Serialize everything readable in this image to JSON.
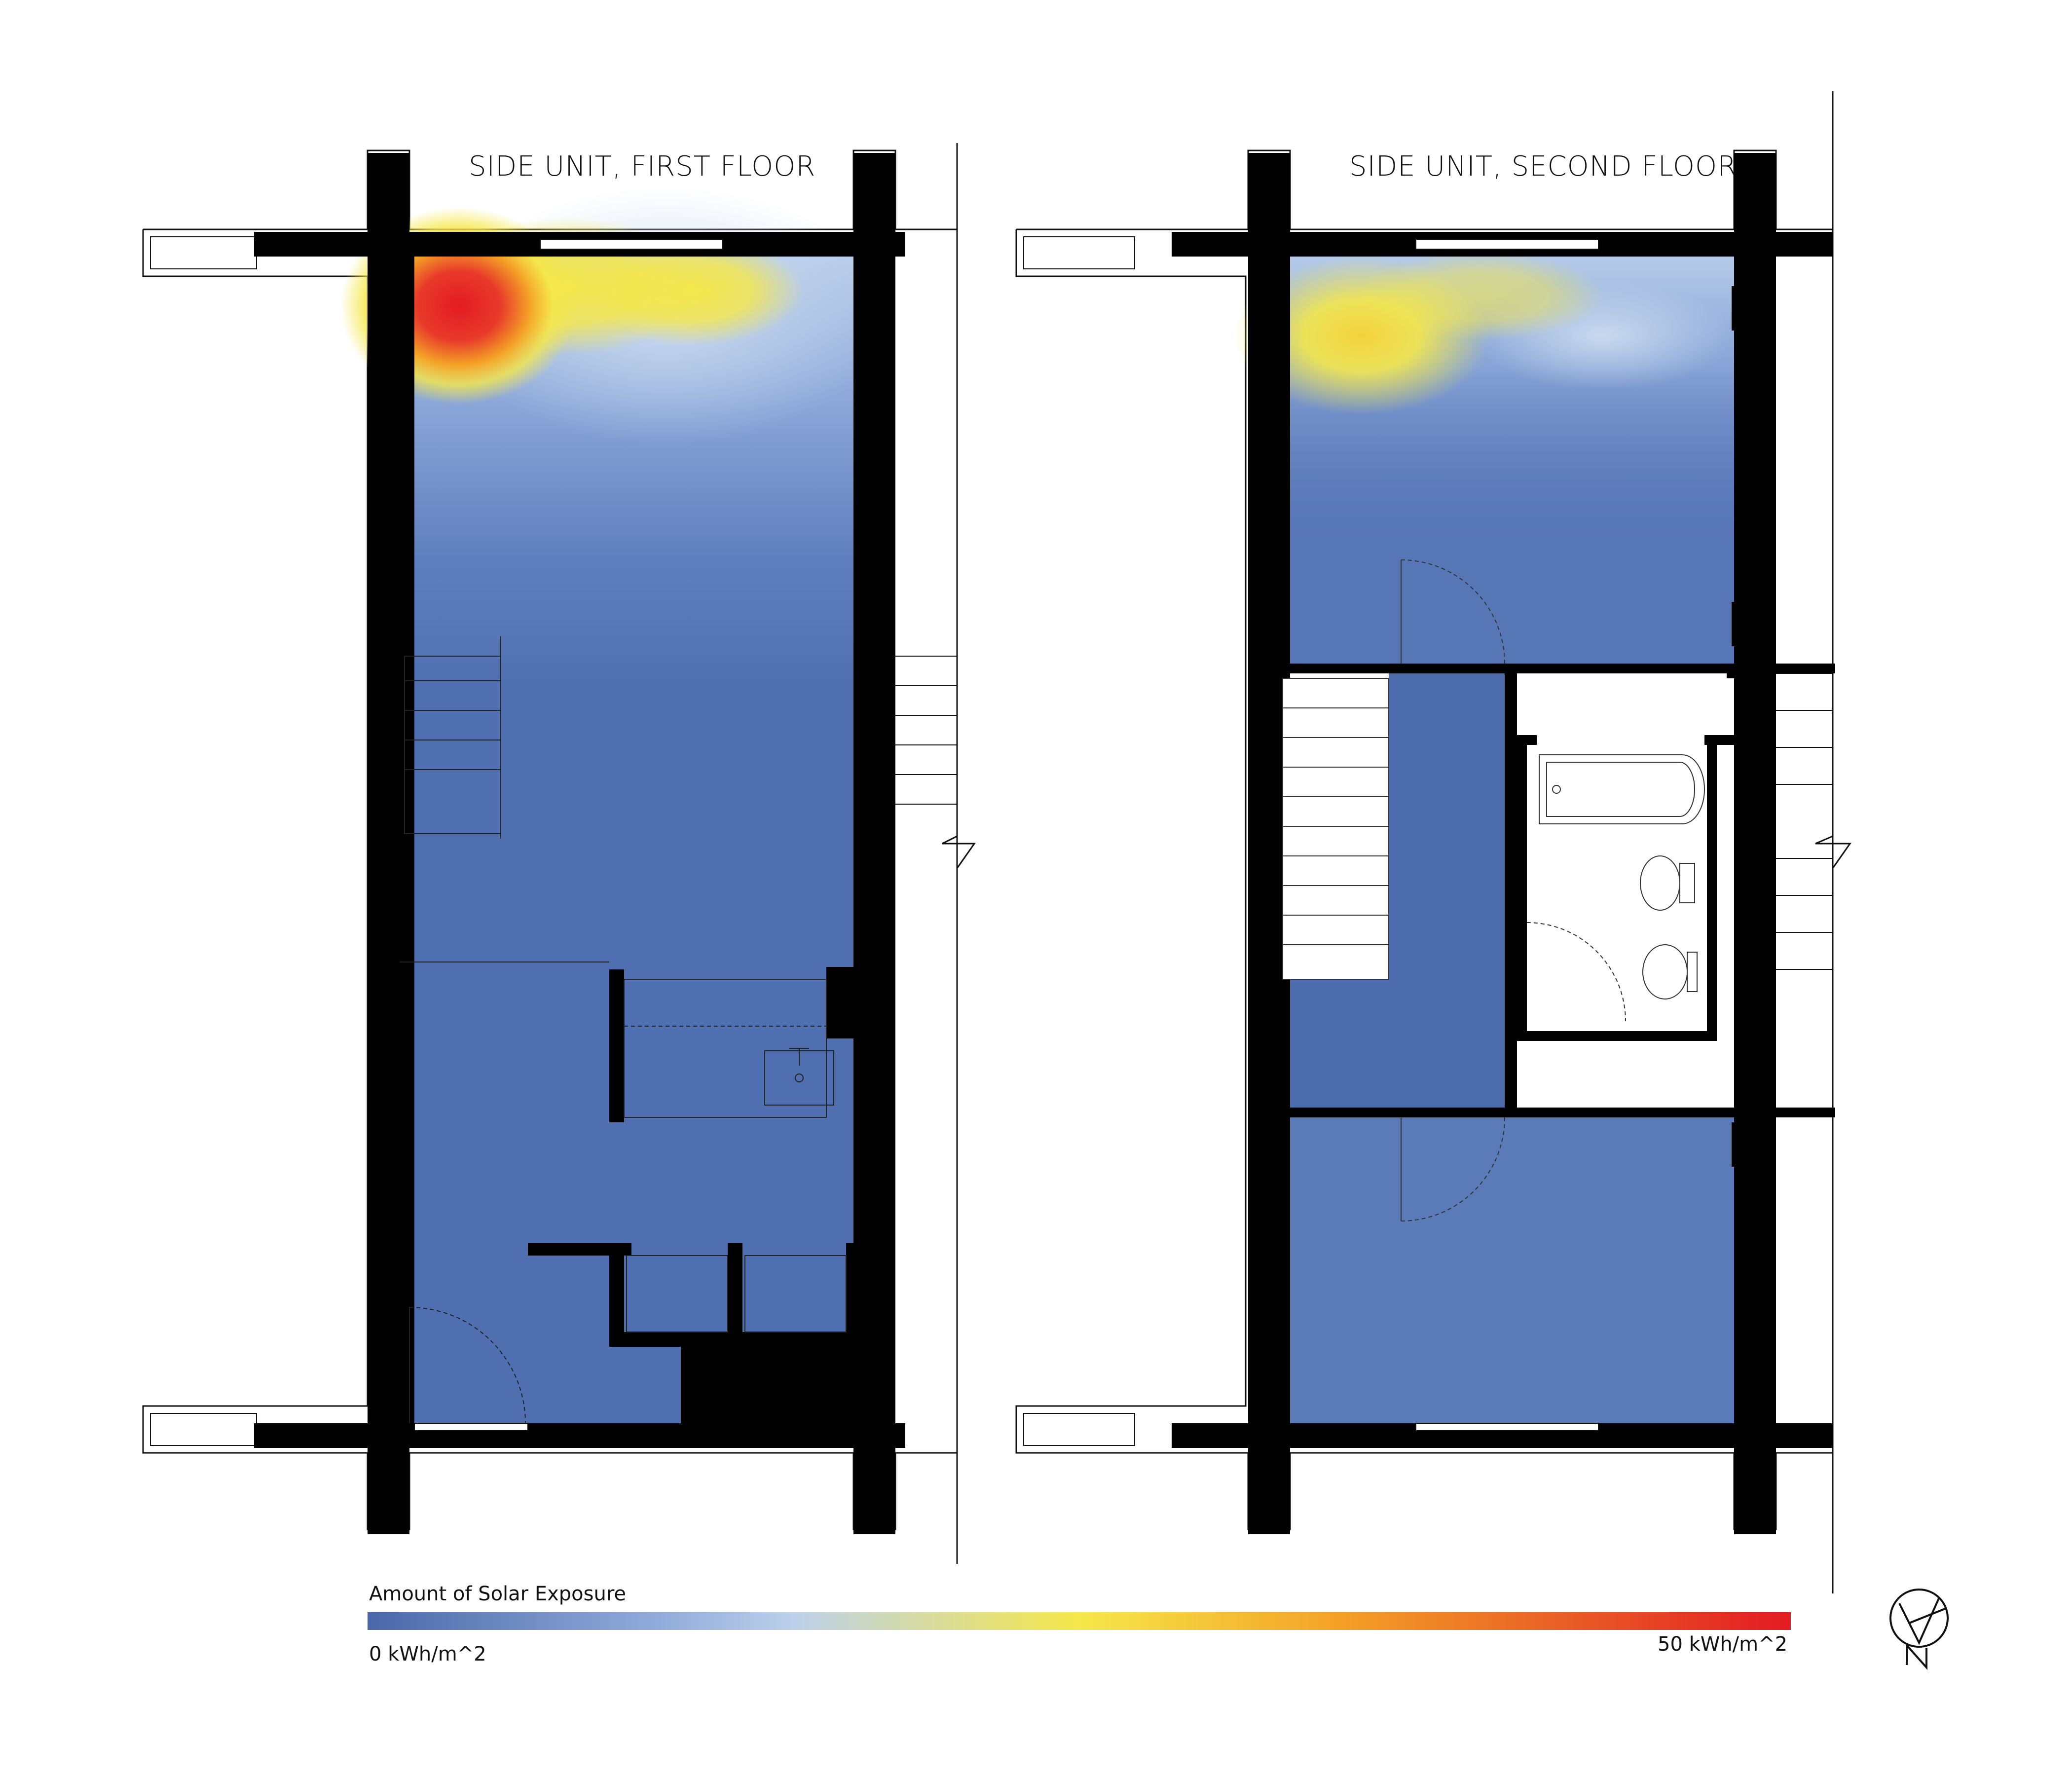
{
  "plans": [
    {
      "title": "SIDE UNIT, FIRST FLOOR"
    },
    {
      "title": "SIDE UNIT, SECOND FLOOR"
    }
  ],
  "legend": {
    "title": "Amount of Solar Exposure",
    "min_label": "0 kWh/m^2",
    "max_label": "50 kWh/m^2",
    "min_value": 0,
    "max_value": 50,
    "unit": "kWh/m^2",
    "color_stops": [
      "#4a68a9",
      "#5e7ebd",
      "#a9c3e6",
      "#f5e84a",
      "#f4a227",
      "#e85a26",
      "#e31b23"
    ]
  },
  "north_arrow": {
    "letter": "N",
    "icon": "north-arrow-icon"
  },
  "colors": {
    "wall": "#000000",
    "floor_base": "#4f6fb0",
    "hot": "#e31b23",
    "warm": "#f5e84a"
  }
}
